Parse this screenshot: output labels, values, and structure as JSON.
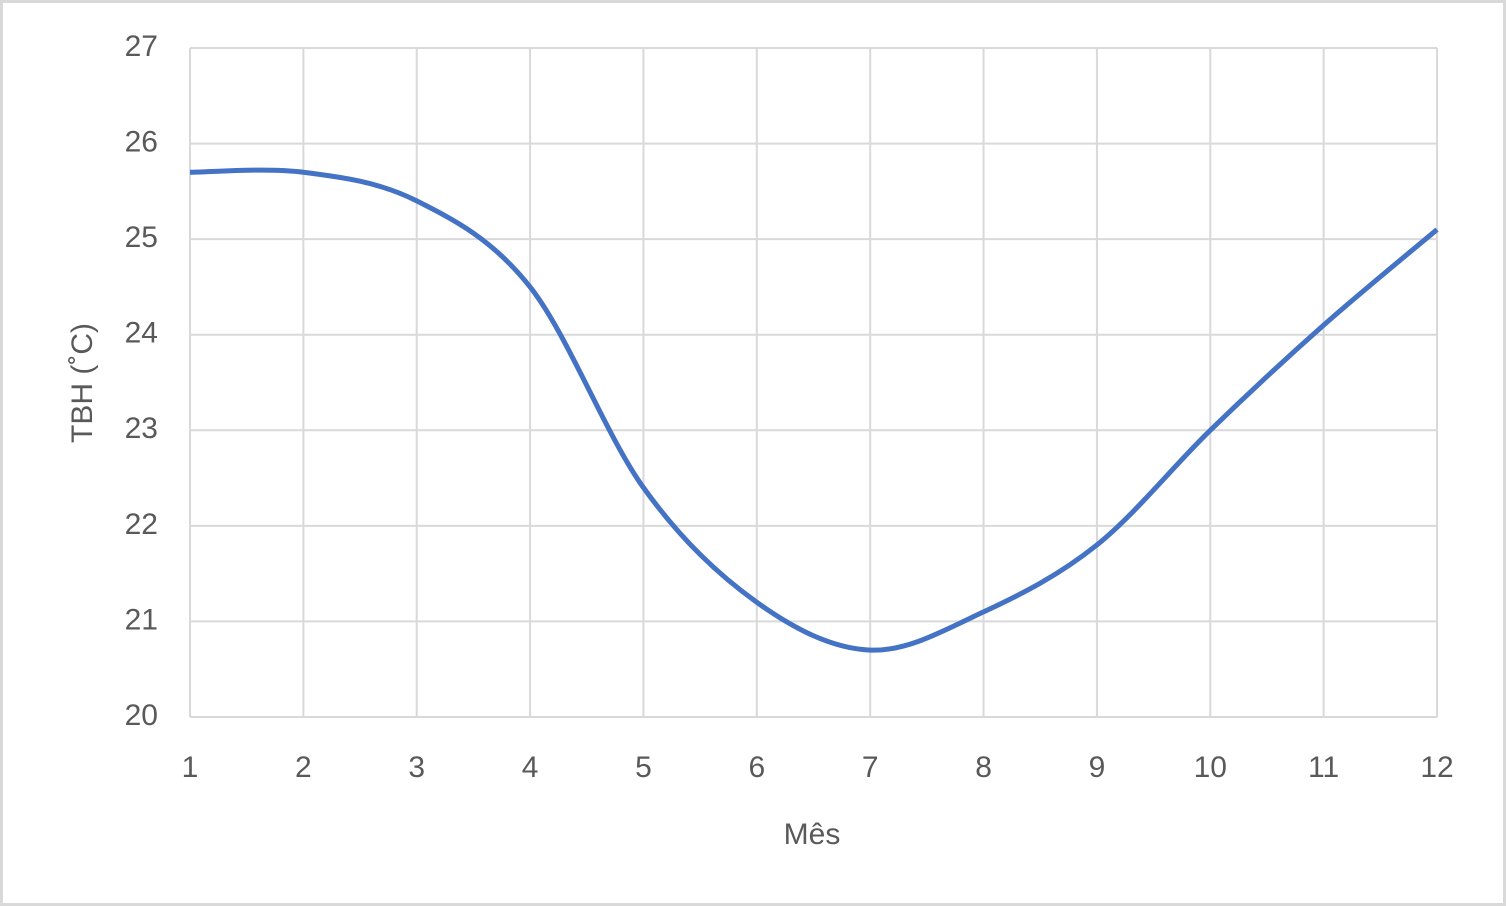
{
  "chart_data": {
    "type": "line",
    "x_label": "Mês",
    "y_label": "TBH (˚C)",
    "x": [
      1,
      2,
      3,
      4,
      5,
      6,
      7,
      8,
      9,
      10,
      11,
      12
    ],
    "series": [
      {
        "name": "TBH",
        "color": "#4472c4",
        "values": [
          25.7,
          25.7,
          25.4,
          24.5,
          22.4,
          21.2,
          20.7,
          21.1,
          21.8,
          23.0,
          24.1,
          25.1
        ]
      }
    ],
    "xlim": [
      1,
      12
    ],
    "xticks": [
      1,
      2,
      3,
      4,
      5,
      6,
      7,
      8,
      9,
      10,
      11,
      12
    ],
    "ylim": [
      20,
      27
    ],
    "yticks": [
      20,
      21,
      22,
      23,
      24,
      25,
      26,
      27
    ],
    "grid": true,
    "smooth": true
  }
}
